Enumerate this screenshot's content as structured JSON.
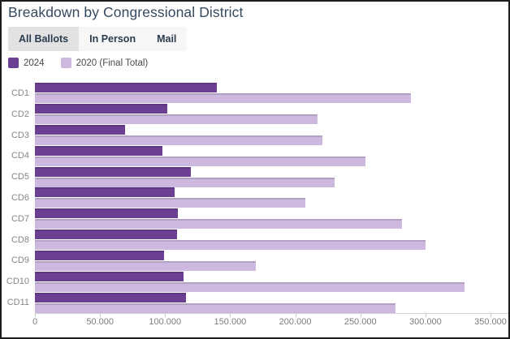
{
  "title": "Breakdown by Congressional District",
  "tabs": {
    "items": [
      {
        "label": "All Ballots",
        "active": true
      },
      {
        "label": "In Person",
        "active": false
      },
      {
        "label": "Mail",
        "active": false
      }
    ]
  },
  "legend": {
    "items": [
      {
        "label": "2024",
        "color": "#6b4092"
      },
      {
        "label": "2020 (Final Total)",
        "color": "#cdb9e0"
      }
    ]
  },
  "chart_data": {
    "type": "bar",
    "orientation": "horizontal",
    "title": "Breakdown by Congressional District",
    "categories": [
      "CD1",
      "CD2",
      "CD3",
      "CD4",
      "CD5",
      "CD6",
      "CD7",
      "CD8",
      "CD9",
      "CD10",
      "CD11"
    ],
    "series": [
      {
        "name": "2024",
        "color": "#6b4092",
        "values": [
          140000,
          102000,
          69000,
          98000,
          120000,
          107000,
          110000,
          109000,
          99000,
          114000,
          116000
        ]
      },
      {
        "name": "2020 (Final Total)",
        "color": "#cdb9e0",
        "values": [
          289000,
          217000,
          221000,
          254000,
          230000,
          208000,
          282000,
          300000,
          170000,
          330000,
          277000
        ]
      }
    ],
    "xlim": [
      0,
      350000
    ],
    "x_ticks": [
      {
        "value": 0,
        "label": "0"
      },
      {
        "value": 50000,
        "label": "50.000"
      },
      {
        "value": 100000,
        "label": "100.000"
      },
      {
        "value": 150000,
        "label": "150.000"
      },
      {
        "value": 200000,
        "label": "200.000"
      },
      {
        "value": 250000,
        "label": "250.000"
      },
      {
        "value": 300000,
        "label": "300.000"
      },
      {
        "value": 350000,
        "label": "350.000"
      }
    ],
    "grid": false,
    "legend_position": "top-left"
  }
}
